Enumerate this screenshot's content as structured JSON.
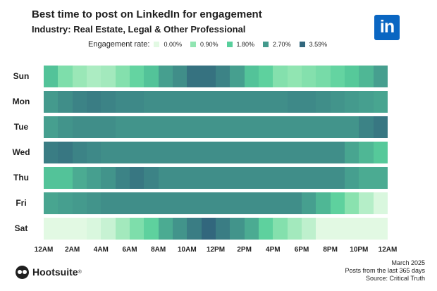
{
  "header": {
    "title": "Best time to post on LinkedIn for engagement",
    "subtitle": "Industry: Real Estate, Legal & Other Professional"
  },
  "legend": {
    "title": "Engagement rate:",
    "items": [
      {
        "label": "0.00%",
        "color": "#e2f9e3"
      },
      {
        "label": "0.90%",
        "color": "#91e5b2"
      },
      {
        "label": "1.80%",
        "color": "#58cf9c"
      },
      {
        "label": "2.70%",
        "color": "#449a8d"
      },
      {
        "label": "3.59%",
        "color": "#32677d"
      }
    ]
  },
  "logo": {
    "text": "in",
    "color": "#0a66c2"
  },
  "chart_data": {
    "type": "heatmap",
    "title": "Best time to post on LinkedIn for engagement",
    "subtitle": "Industry: Real Estate, Legal & Other Professional",
    "value_label": "Engagement rate (%)",
    "scale_min": 0.0,
    "scale_max": 3.59,
    "rows": [
      "Sun",
      "Mon",
      "Tue",
      "Wed",
      "Thu",
      "Fri",
      "Sat"
    ],
    "x_ticks": [
      "12AM",
      "2AM",
      "4AM",
      "6AM",
      "8AM",
      "10AM",
      "12PM",
      "2PM",
      "4PM",
      "6PM",
      "8PM",
      "10PM",
      "12AM"
    ],
    "values": [
      [
        2.0,
        1.2,
        0.8,
        0.6,
        0.7,
        1.1,
        1.6,
        2.0,
        2.6,
        2.9,
        3.4,
        3.4,
        3.1,
        2.6,
        2.0,
        1.7,
        1.1,
        0.9,
        1.1,
        1.3,
        1.6,
        1.9,
        2.2,
        2.6
      ],
      [
        2.7,
        2.9,
        3.1,
        3.2,
        3.1,
        3.0,
        3.0,
        2.9,
        2.9,
        2.9,
        2.9,
        2.9,
        2.9,
        2.9,
        2.9,
        2.9,
        2.9,
        3.0,
        3.0,
        2.9,
        2.8,
        2.7,
        2.6,
        2.5
      ],
      [
        2.6,
        2.8,
        2.9,
        2.9,
        2.9,
        2.8,
        2.8,
        2.8,
        2.8,
        2.8,
        2.8,
        2.8,
        2.8,
        2.8,
        2.8,
        2.8,
        2.8,
        2.8,
        2.8,
        2.8,
        2.8,
        2.8,
        3.1,
        3.3
      ],
      [
        3.2,
        3.3,
        3.1,
        3.0,
        2.9,
        2.9,
        2.9,
        2.9,
        2.9,
        2.9,
        2.9,
        2.9,
        2.9,
        2.9,
        2.9,
        2.9,
        2.9,
        2.9,
        2.9,
        2.9,
        2.9,
        2.5,
        2.2,
        1.9
      ],
      [
        2.0,
        2.0,
        2.4,
        2.6,
        2.8,
        3.1,
        3.3,
        3.1,
        2.9,
        2.9,
        2.9,
        2.9,
        2.9,
        2.9,
        2.9,
        2.9,
        2.9,
        2.9,
        2.9,
        2.9,
        2.9,
        2.6,
        2.4,
        2.4
      ],
      [
        2.5,
        2.6,
        2.7,
        2.8,
        2.9,
        2.9,
        2.9,
        2.9,
        2.9,
        2.9,
        2.9,
        2.9,
        2.9,
        2.9,
        2.9,
        2.9,
        2.9,
        2.9,
        2.6,
        2.2,
        1.7,
        1.0,
        0.5,
        0.1
      ],
      [
        0.0,
        0.0,
        0.0,
        0.1,
        0.3,
        0.7,
        1.2,
        1.7,
        2.4,
        2.8,
        3.2,
        3.6,
        3.2,
        2.8,
        2.4,
        1.7,
        1.1,
        0.7,
        0.4,
        0.0,
        0.0,
        0.0,
        0.0,
        0.0
      ]
    ]
  },
  "footer": {
    "brand": "Hootsuite",
    "brand_mark": "®",
    "date": "March 2025",
    "period": "Posts from the last 365 days",
    "source": "Source: Critical Truth"
  }
}
